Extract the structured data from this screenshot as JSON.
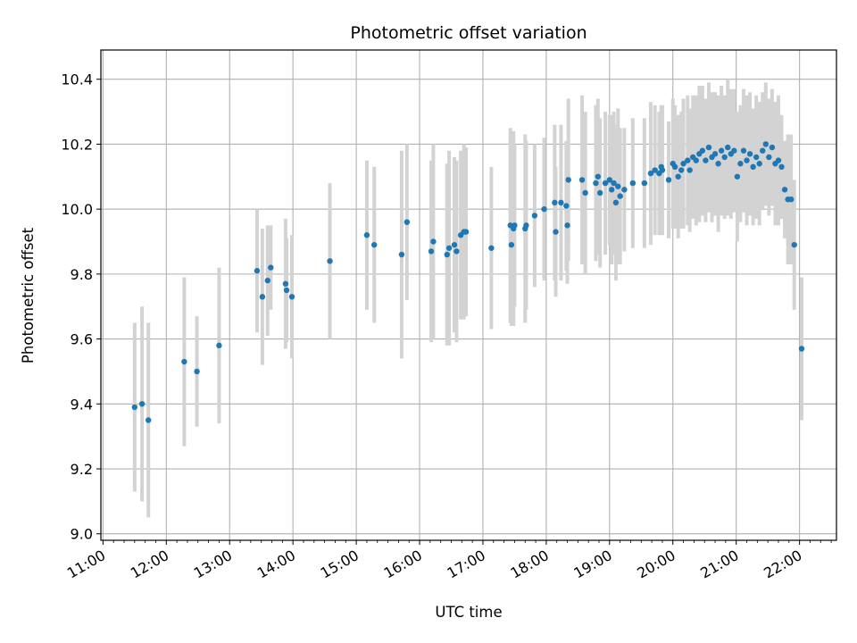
{
  "chart_data": {
    "type": "scatter",
    "title": "Photometric offset variation",
    "xlabel": "UTC time",
    "ylabel": "Photometric offset",
    "x_ticks": [
      "11:00",
      "12:00",
      "13:00",
      "14:00",
      "15:00",
      "16:00",
      "17:00",
      "18:00",
      "19:00",
      "20:00",
      "21:00",
      "22:00"
    ],
    "y_ticks": [
      "9.0",
      "9.2",
      "9.4",
      "9.6",
      "9.8",
      "10.0",
      "10.2",
      "10.4"
    ],
    "xlim": [
      "10:58",
      "22:35"
    ],
    "ylim": [
      8.98,
      10.49
    ],
    "grid": true,
    "colors": {
      "point": "#1f77b4",
      "errorbar": "#d3d3d3",
      "grid": "#b0b0b0"
    },
    "series": [
      {
        "x": [
          "11:30",
          "11:37",
          "11:43",
          "12:17",
          "12:29",
          "12:50",
          "13:26",
          "13:31",
          "13:36",
          "13:39",
          "13:53",
          "13:54",
          "13:59",
          "14:35",
          "15:10",
          "15:17",
          "15:43",
          "15:48",
          "16:11",
          "16:13",
          "16:26",
          "16:28",
          "16:33",
          "16:35",
          "16:39",
          "16:42",
          "16:44",
          "17:08",
          "17:26",
          "17:27",
          "17:29",
          "17:30",
          "17:40",
          "17:41",
          "17:49",
          "17:58",
          "18:08",
          "18:09",
          "18:14",
          "18:19",
          "18:20",
          "18:21",
          "18:34",
          "18:37",
          "18:47",
          "18:49",
          "18:51",
          "18:56",
          "19:00",
          "19:02",
          "19:04",
          "19:06",
          "19:08",
          "19:10",
          "19:14",
          "19:22",
          "19:33",
          "19:39",
          "19:43",
          "19:47",
          "19:49",
          "19:50",
          "19:56",
          "20:00",
          "20:02",
          "20:05",
          "20:08",
          "20:10",
          "20:14",
          "20:16",
          "20:19",
          "20:22",
          "20:25",
          "20:28",
          "20:31",
          "20:34",
          "20:37",
          "20:40",
          "20:43",
          "20:46",
          "20:49",
          "20:52",
          "20:55",
          "20:58",
          "21:01",
          "21:04",
          "21:07",
          "21:10",
          "21:13",
          "21:16",
          "21:19",
          "21:22",
          "21:25",
          "21:28",
          "21:31",
          "21:34",
          "21:37",
          "21:40",
          "21:43",
          "21:46",
          "21:49",
          "21:52",
          "21:55",
          "22:02"
        ],
        "y": [
          9.39,
          9.4,
          9.35,
          9.53,
          9.5,
          9.58,
          9.81,
          9.73,
          9.78,
          9.82,
          9.77,
          9.75,
          9.73,
          9.84,
          9.92,
          9.89,
          9.86,
          9.96,
          9.87,
          9.9,
          9.86,
          9.88,
          9.89,
          9.87,
          9.92,
          9.93,
          9.93,
          9.88,
          9.95,
          9.89,
          9.94,
          9.95,
          9.94,
          9.95,
          9.98,
          10.0,
          10.02,
          9.93,
          10.02,
          10.01,
          9.95,
          10.09,
          10.09,
          10.05,
          10.08,
          10.1,
          10.05,
          10.08,
          10.09,
          10.06,
          10.08,
          10.02,
          10.07,
          10.04,
          10.06,
          10.08,
          10.08,
          10.11,
          10.12,
          10.11,
          10.13,
          10.12,
          10.09,
          10.14,
          10.13,
          10.1,
          10.12,
          10.14,
          10.15,
          10.12,
          10.16,
          10.15,
          10.17,
          10.18,
          10.15,
          10.19,
          10.16,
          10.17,
          10.14,
          10.18,
          10.16,
          10.19,
          10.17,
          10.18,
          10.1,
          10.14,
          10.18,
          10.15,
          10.17,
          10.13,
          10.16,
          10.14,
          10.18,
          10.2,
          10.16,
          10.19,
          10.14,
          10.15,
          10.13,
          10.06,
          10.03,
          10.03,
          9.89,
          9.57
        ],
        "err": [
          0.26,
          0.3,
          0.3,
          0.26,
          0.17,
          0.24,
          0.19,
          0.21,
          0.17,
          0.13,
          0.2,
          0.16,
          0.19,
          0.24,
          0.23,
          0.24,
          0.32,
          0.24,
          0.28,
          0.3,
          0.28,
          0.3,
          0.27,
          0.28,
          0.26,
          0.27,
          0.26,
          0.25,
          0.3,
          0.25,
          0.3,
          0.25,
          0.29,
          0.26,
          0.22,
          0.22,
          0.24,
          0.2,
          0.24,
          0.2,
          0.18,
          0.25,
          0.26,
          0.25,
          0.24,
          0.24,
          0.23,
          0.22,
          0.2,
          0.23,
          0.22,
          0.24,
          0.24,
          0.21,
          0.19,
          0.2,
          0.2,
          0.22,
          0.2,
          0.19,
          0.19,
          0.2,
          0.18,
          0.2,
          0.19,
          0.19,
          0.18,
          0.2,
          0.2,
          0.19,
          0.19,
          0.2,
          0.21,
          0.2,
          0.19,
          0.2,
          0.2,
          0.19,
          0.21,
          0.2,
          0.19,
          0.21,
          0.2,
          0.19,
          0.2,
          0.18,
          0.19,
          0.2,
          0.19,
          0.18,
          0.19,
          0.19,
          0.18,
          0.19,
          0.18,
          0.18,
          0.19,
          0.2,
          0.16,
          0.15,
          0.2,
          0.2,
          0.2,
          0.22
        ]
      }
    ]
  }
}
